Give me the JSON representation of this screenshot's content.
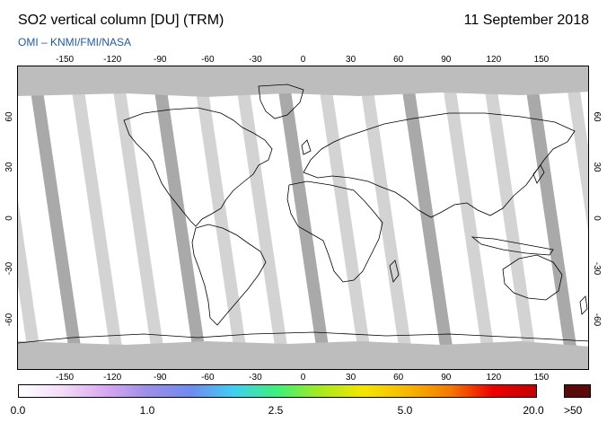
{
  "header": {
    "title": "SO2 vertical column [DU] (TRM)",
    "date": "11 September 2018",
    "credit": "OMI  –  KNMI/FMI/NASA"
  },
  "axes": {
    "lon_ticks": [
      "-150",
      "-120",
      "-90",
      "-60",
      "-30",
      "0",
      "30",
      "60",
      "90",
      "120",
      "150"
    ],
    "lat_ticks": [
      "60",
      "30",
      "0",
      "-30",
      "-60"
    ]
  },
  "colorbar": {
    "labels": [
      "0.0",
      "1.0",
      "2.5",
      "5.0",
      "20.0"
    ],
    "overflow_label": ">50",
    "overflow_color": "#5a0a0a",
    "colors": [
      "#ffffff",
      "#f3dcf7",
      "#d9a8f0",
      "#9b8ee8",
      "#6e8bf0",
      "#3fd0f2",
      "#3ef07a",
      "#a8ea1e",
      "#f5e600",
      "#f6b800",
      "#f57a00",
      "#ee0000",
      "#c40000"
    ]
  },
  "map": {
    "land_fill": "#ffffff",
    "swath_gap_color": "#d3d3d3",
    "swath_overlap_color": "#a9a9a9",
    "coastline_color": "#000000"
  }
}
